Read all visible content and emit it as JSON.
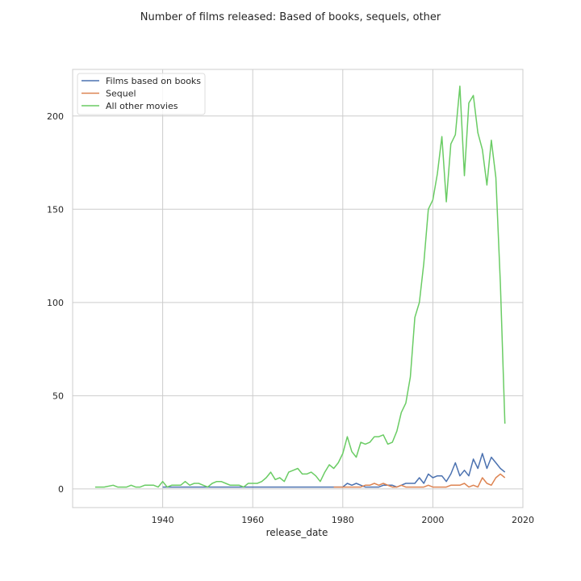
{
  "chart_data": {
    "type": "line",
    "title": "Number of films released: Based of books, sequels, other",
    "xlabel": "release_date",
    "ylabel": "",
    "xlim": [
      1920,
      2020
    ],
    "ylim": [
      -10,
      225
    ],
    "xticks": [
      1940,
      1960,
      1980,
      2000,
      2020
    ],
    "yticks": [
      0,
      50,
      100,
      150,
      200
    ],
    "grid": true,
    "legend_position": "top-left",
    "series": [
      {
        "name": "Films based on books",
        "color": "#4c72b0",
        "points": [
          [
            1940,
            1
          ],
          [
            1945,
            1
          ],
          [
            1950,
            1
          ],
          [
            1955,
            1
          ],
          [
            1960,
            1
          ],
          [
            1965,
            1
          ],
          [
            1970,
            1
          ],
          [
            1975,
            1
          ],
          [
            1978,
            1
          ],
          [
            1979,
            1
          ],
          [
            1980,
            1
          ],
          [
            1981,
            3
          ],
          [
            1982,
            2
          ],
          [
            1983,
            3
          ],
          [
            1984,
            2
          ],
          [
            1985,
            1
          ],
          [
            1986,
            1
          ],
          [
            1987,
            1
          ],
          [
            1988,
            1
          ],
          [
            1989,
            2
          ],
          [
            1990,
            2
          ],
          [
            1991,
            2
          ],
          [
            1992,
            1
          ],
          [
            1993,
            2
          ],
          [
            1994,
            3
          ],
          [
            1995,
            3
          ],
          [
            1996,
            3
          ],
          [
            1997,
            6
          ],
          [
            1998,
            3
          ],
          [
            1999,
            8
          ],
          [
            2000,
            6
          ],
          [
            2001,
            7
          ],
          [
            2002,
            7
          ],
          [
            2003,
            4
          ],
          [
            2004,
            8
          ],
          [
            2005,
            14
          ],
          [
            2006,
            7
          ],
          [
            2007,
            10
          ],
          [
            2008,
            7
          ],
          [
            2009,
            16
          ],
          [
            2010,
            11
          ],
          [
            2011,
            19
          ],
          [
            2012,
            11
          ],
          [
            2013,
            17
          ],
          [
            2014,
            14
          ],
          [
            2015,
            11
          ],
          [
            2016,
            9
          ]
        ]
      },
      {
        "name": "Sequel",
        "color": "#dd8452",
        "points": [
          [
            1978,
            1
          ],
          [
            1980,
            1
          ],
          [
            1982,
            1
          ],
          [
            1984,
            1
          ],
          [
            1985,
            2
          ],
          [
            1986,
            2
          ],
          [
            1987,
            3
          ],
          [
            1988,
            2
          ],
          [
            1989,
            3
          ],
          [
            1990,
            2
          ],
          [
            1991,
            1
          ],
          [
            1992,
            1
          ],
          [
            1993,
            2
          ],
          [
            1994,
            1
          ],
          [
            1995,
            1
          ],
          [
            1996,
            1
          ],
          [
            1997,
            1
          ],
          [
            1998,
            1
          ],
          [
            1999,
            2
          ],
          [
            2000,
            1
          ],
          [
            2001,
            1
          ],
          [
            2002,
            1
          ],
          [
            2003,
            1
          ],
          [
            2004,
            2
          ],
          [
            2005,
            2
          ],
          [
            2006,
            2
          ],
          [
            2007,
            3
          ],
          [
            2008,
            1
          ],
          [
            2009,
            2
          ],
          [
            2010,
            1
          ],
          [
            2011,
            6
          ],
          [
            2012,
            3
          ],
          [
            2013,
            2
          ],
          [
            2014,
            6
          ],
          [
            2015,
            8
          ],
          [
            2016,
            6
          ]
        ]
      },
      {
        "name": "All other movies",
        "color": "#6acc64",
        "points": [
          [
            1925,
            1
          ],
          [
            1927,
            1
          ],
          [
            1929,
            2
          ],
          [
            1930,
            1
          ],
          [
            1932,
            1
          ],
          [
            1933,
            2
          ],
          [
            1934,
            1
          ],
          [
            1935,
            1
          ],
          [
            1936,
            2
          ],
          [
            1938,
            2
          ],
          [
            1939,
            1
          ],
          [
            1940,
            4
          ],
          [
            1941,
            1
          ],
          [
            1942,
            2
          ],
          [
            1943,
            2
          ],
          [
            1944,
            2
          ],
          [
            1945,
            4
          ],
          [
            1946,
            2
          ],
          [
            1947,
            3
          ],
          [
            1948,
            3
          ],
          [
            1949,
            2
          ],
          [
            1950,
            1
          ],
          [
            1951,
            3
          ],
          [
            1952,
            4
          ],
          [
            1953,
            4
          ],
          [
            1954,
            3
          ],
          [
            1955,
            2
          ],
          [
            1956,
            2
          ],
          [
            1957,
            2
          ],
          [
            1958,
            1
          ],
          [
            1959,
            3
          ],
          [
            1960,
            3
          ],
          [
            1961,
            3
          ],
          [
            1962,
            4
          ],
          [
            1963,
            6
          ],
          [
            1964,
            9
          ],
          [
            1965,
            5
          ],
          [
            1966,
            6
          ],
          [
            1967,
            4
          ],
          [
            1968,
            9
          ],
          [
            1969,
            10
          ],
          [
            1970,
            11
          ],
          [
            1971,
            8
          ],
          [
            1972,
            8
          ],
          [
            1973,
            9
          ],
          [
            1974,
            7
          ],
          [
            1975,
            4
          ],
          [
            1976,
            9
          ],
          [
            1977,
            13
          ],
          [
            1978,
            11
          ],
          [
            1979,
            14
          ],
          [
            1980,
            19
          ],
          [
            1981,
            28
          ],
          [
            1982,
            20
          ],
          [
            1983,
            17
          ],
          [
            1984,
            25
          ],
          [
            1985,
            24
          ],
          [
            1986,
            25
          ],
          [
            1987,
            28
          ],
          [
            1988,
            28
          ],
          [
            1989,
            29
          ],
          [
            1990,
            24
          ],
          [
            1991,
            25
          ],
          [
            1992,
            31
          ],
          [
            1993,
            41
          ],
          [
            1994,
            46
          ],
          [
            1995,
            60
          ],
          [
            1996,
            92
          ],
          [
            1997,
            100
          ],
          [
            1998,
            121
          ],
          [
            1999,
            150
          ],
          [
            2000,
            155
          ],
          [
            2001,
            169
          ],
          [
            2002,
            189
          ],
          [
            2003,
            154
          ],
          [
            2004,
            185
          ],
          [
            2005,
            190
          ],
          [
            2006,
            216
          ],
          [
            2007,
            168
          ],
          [
            2008,
            207
          ],
          [
            2009,
            211
          ],
          [
            2010,
            191
          ],
          [
            2011,
            182
          ],
          [
            2012,
            163
          ],
          [
            2013,
            187
          ],
          [
            2014,
            167
          ],
          [
            2015,
            110
          ],
          [
            2016,
            35
          ]
        ]
      }
    ]
  }
}
